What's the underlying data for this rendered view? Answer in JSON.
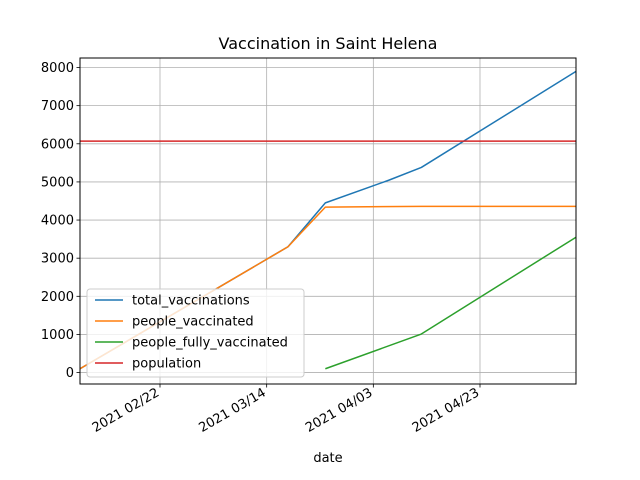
{
  "chart_data": {
    "type": "line",
    "title": "Vaccination in Saint Helena",
    "xlabel": "date",
    "ylabel": "",
    "x_range": [
      "2021-02-07",
      "2021-05-11"
    ],
    "ylim": [
      -300,
      8250
    ],
    "x_ticks": [
      {
        "date": "2021-02-22",
        "label": "2021 02/22"
      },
      {
        "date": "2021-03-14",
        "label": "2021 03/14"
      },
      {
        "date": "2021-04-03",
        "label": "2021 04/03"
      },
      {
        "date": "2021-04-23",
        "label": "2021 04/23"
      }
    ],
    "y_ticks": [
      0,
      1000,
      2000,
      3000,
      4000,
      5000,
      6000,
      7000,
      8000
    ],
    "grid": true,
    "legend_position": "lower-left",
    "series": [
      {
        "name": "total_vaccinations",
        "color": "#1f77b4",
        "points": [
          [
            "2021-02-07",
            100
          ],
          [
            "2021-03-18",
            3300
          ],
          [
            "2021-03-25",
            4450
          ],
          [
            "2021-04-06",
            5050
          ],
          [
            "2021-04-12",
            5380
          ],
          [
            "2021-05-11",
            7900
          ]
        ]
      },
      {
        "name": "people_vaccinated",
        "color": "#ff7f0e",
        "points": [
          [
            "2021-02-07",
            100
          ],
          [
            "2021-03-18",
            3300
          ],
          [
            "2021-03-25",
            4340
          ],
          [
            "2021-04-12",
            4360
          ],
          [
            "2021-05-11",
            4360
          ]
        ]
      },
      {
        "name": "people_fully_vaccinated",
        "color": "#2ca02c",
        "points": [
          [
            "2021-03-25",
            100
          ],
          [
            "2021-04-12",
            1010
          ],
          [
            "2021-05-11",
            3550
          ]
        ]
      },
      {
        "name": "population",
        "color": "#d62728",
        "points": [
          [
            "2021-02-07",
            6070
          ],
          [
            "2021-05-11",
            6070
          ]
        ]
      }
    ]
  }
}
